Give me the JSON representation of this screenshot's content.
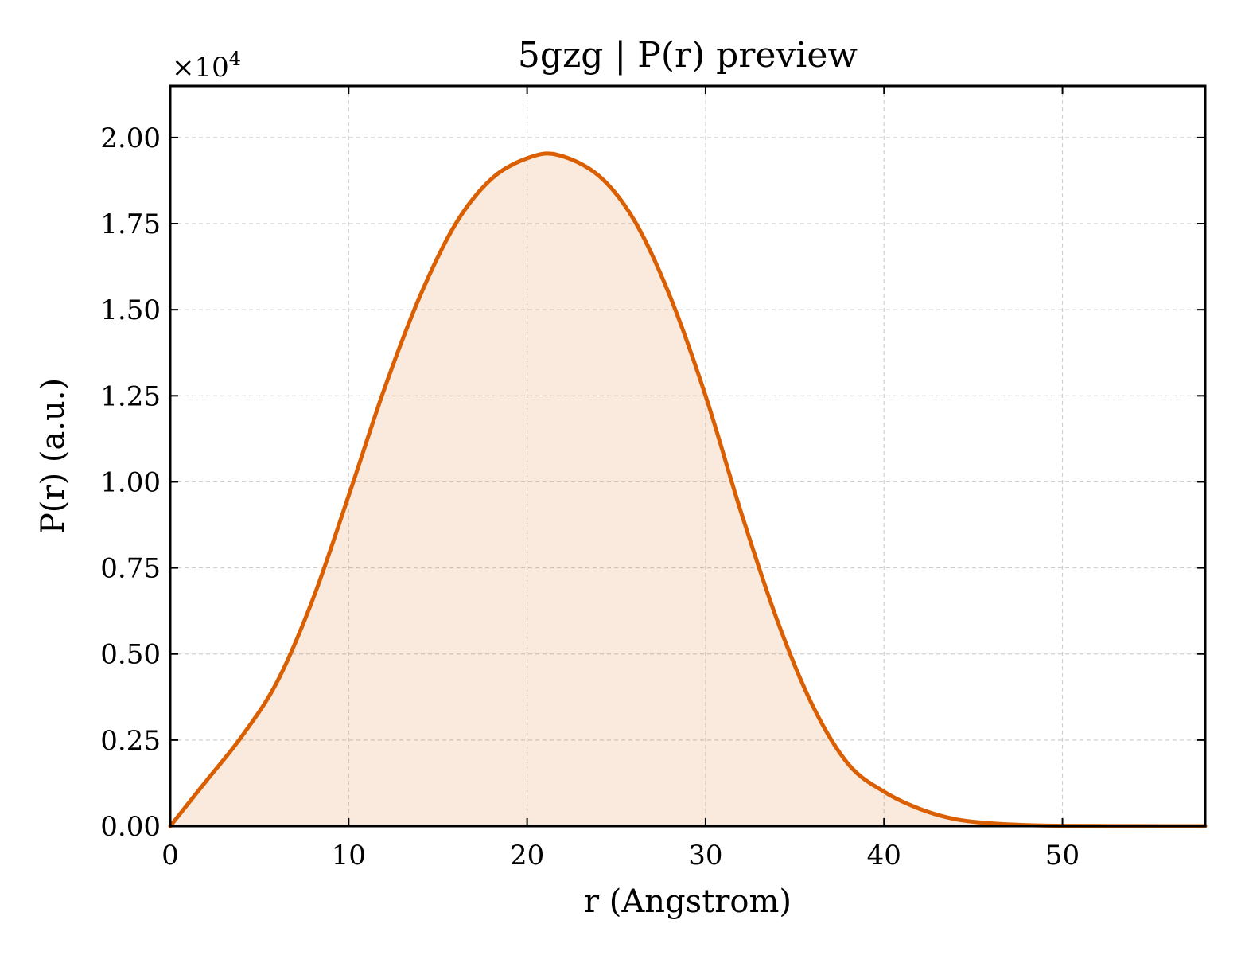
{
  "chart_data": {
    "type": "area",
    "title": "5gzg | P(r) preview",
    "xlabel": "r (Angstrom)",
    "ylabel": "P(r) (a.u.)",
    "y_offset_label": "×10",
    "y_offset_exponent": "4",
    "xlim": [
      0,
      58
    ],
    "ylim": [
      0,
      2.15
    ],
    "y_scale_factor": 10000,
    "xticks": [
      0,
      10,
      20,
      30,
      40,
      50
    ],
    "xtick_labels": [
      "0",
      "10",
      "20",
      "30",
      "40",
      "50"
    ],
    "yticks": [
      0,
      0.25,
      0.5,
      0.75,
      1.0,
      1.25,
      1.5,
      1.75,
      2.0
    ],
    "ytick_labels": [
      "0.00",
      "0.25",
      "0.50",
      "0.75",
      "1.00",
      "1.25",
      "1.50",
      "1.75",
      "2.00"
    ],
    "grid": true,
    "line_color": "#d95f02",
    "fill_color": "#d95f02",
    "fill_opacity": 0.13,
    "series": [
      {
        "x": [
          0,
          2,
          4,
          6,
          8,
          10,
          12,
          14,
          16,
          18,
          20,
          21.7,
          24,
          26,
          28,
          30,
          32,
          34,
          36,
          38,
          40,
          42,
          44,
          46,
          48,
          50,
          52,
          54,
          56,
          58
        ],
        "y": [
          0,
          0.13,
          0.26,
          0.42,
          0.66,
          0.96,
          1.27,
          1.54,
          1.75,
          1.88,
          1.94,
          1.95,
          1.89,
          1.76,
          1.54,
          1.25,
          0.91,
          0.6,
          0.35,
          0.18,
          0.1,
          0.05,
          0.02,
          0.008,
          0.003,
          0.001,
          0.0005,
          0.0002,
          0.0001,
          0
        ]
      }
    ]
  }
}
